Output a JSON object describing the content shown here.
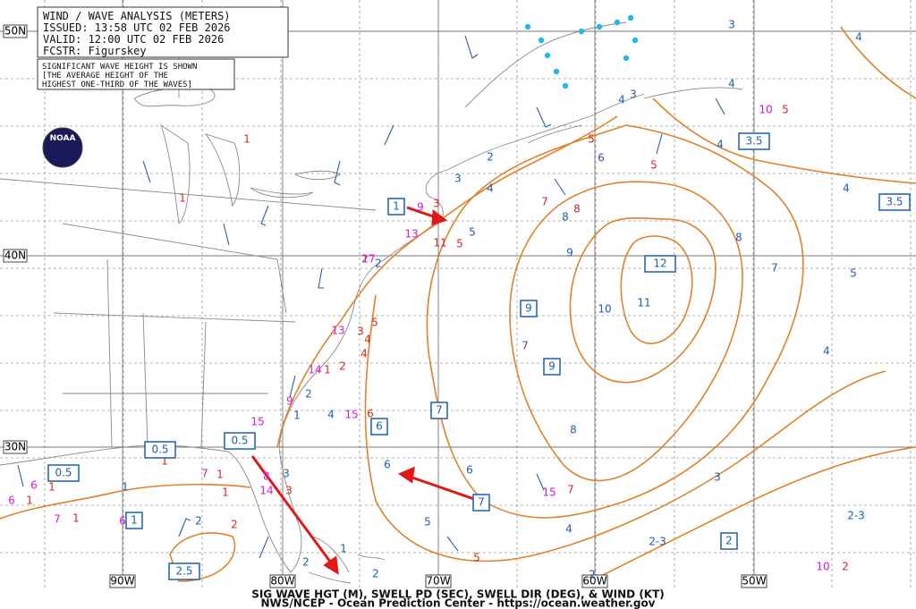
{
  "header": {
    "lines": [
      "WIND / WAVE ANALYSIS (METERS)",
      "ISSUED: 13:58 UTC 02 FEB 2026",
      "VALID:  12:00 UTC 02 FEB 2026",
      "FCSTR:  Figurskey"
    ],
    "note": [
      "SIGNIFICANT WAVE HEIGHT IS SHOWN",
      "[THE AVERAGE HEIGHT OF THE",
      "HIGHEST ONE-THIRD OF THE WAVES]"
    ],
    "logo": "NOAA"
  },
  "lat_labels": [
    "50N",
    "40N",
    "30N"
  ],
  "lon_labels": [
    "90W",
    "80W",
    "70W",
    "60W",
    "50W"
  ],
  "wave_height_labels": {
    "color": "#1f5fae",
    "labels": [
      "3",
      "4",
      "4",
      "3",
      "4",
      "2",
      "3",
      "4",
      "6",
      "4",
      "4",
      "8",
      "9",
      "8",
      "7",
      "5",
      "5",
      "10",
      "11",
      "7",
      "4",
      "8",
      "6",
      "6",
      "3",
      "5",
      "4",
      "2-3",
      "2-3",
      "2",
      "3",
      "2",
      "1",
      "2",
      "1",
      "2",
      "4",
      "2",
      "1",
      "2"
    ]
  },
  "period_labels": {
    "color": "#d42a1e",
    "labels": [
      "1",
      "1",
      "5",
      "5",
      "7",
      "8",
      "3",
      "5",
      "11",
      "2",
      "5",
      "3",
      "4",
      "4",
      "2",
      "1",
      "6",
      "5",
      "7",
      "5",
      "2",
      "1",
      "1",
      "1",
      "2",
      "3",
      "1",
      "1",
      "1"
    ]
  },
  "wind_labels": {
    "color": "#d21ad2",
    "labels": [
      "10",
      "15",
      "10",
      "9",
      "13",
      "17",
      "13",
      "14",
      "15",
      "15",
      "9",
      "7",
      "8",
      "14",
      "6",
      "6",
      "7",
      "6"
    ]
  },
  "boxed_labels": {
    "color": "#1f5fae",
    "labels": [
      "1",
      "3.5",
      "3.5",
      "12",
      "9",
      "9",
      "7",
      "6",
      "7",
      "2",
      "0.5",
      "0.5",
      "0.5",
      "1",
      "2.5"
    ]
  },
  "footer": [
    "SIG WAVE HGT (M), SWELL PD (SEC), SWELL DIR (DEG), & WIND (KT)",
    "NWS/NCEP - Ocean Prediction Center - https://ocean.weather.gov"
  ]
}
